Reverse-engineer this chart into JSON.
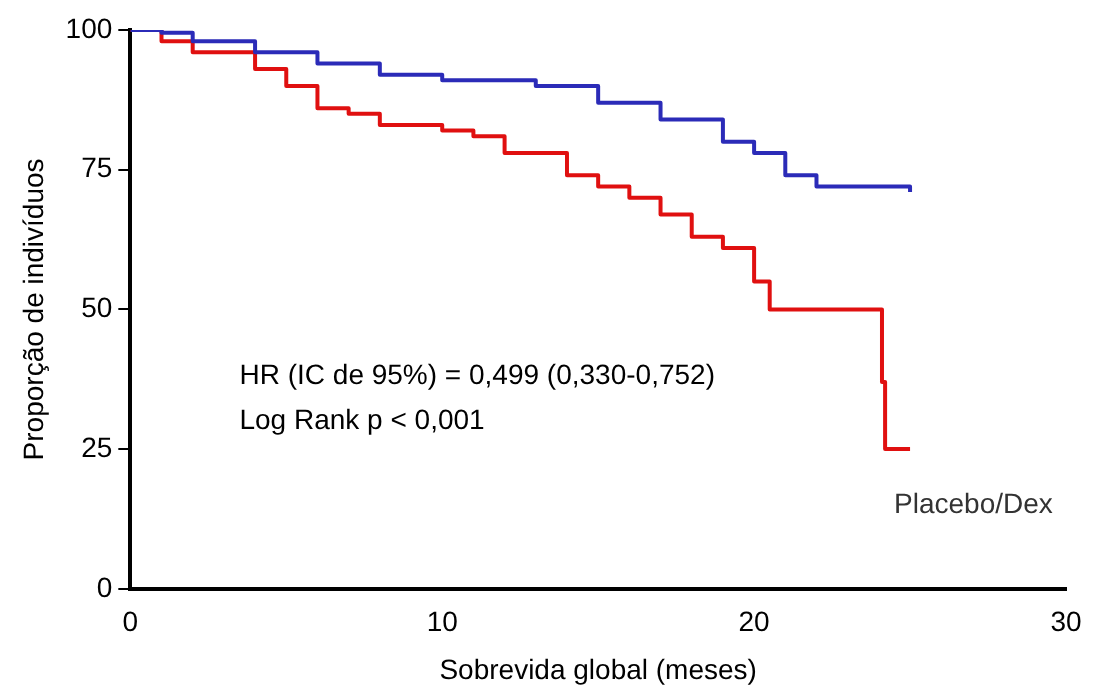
{
  "chart_data": {
    "type": "step",
    "xlabel": "Sobrevida global (meses)",
    "ylabel": "Proporção de indivíduos",
    "xlim": [
      0,
      30
    ],
    "xticks": [
      0,
      10,
      20,
      30
    ],
    "ylim": [
      0,
      100
    ],
    "yticks": [
      0,
      25,
      50,
      75,
      100
    ],
    "grid": false,
    "legend": false,
    "marker": "none",
    "series": [
      {
        "color": "#2b2bb8",
        "x": [
          0,
          1,
          2,
          4,
          6,
          8,
          10,
          13,
          15,
          17,
          19,
          20,
          21,
          22,
          25
        ],
        "values": [
          100,
          99.5,
          98,
          96,
          94,
          92,
          91,
          90,
          87,
          84,
          80,
          78,
          74,
          72,
          71
        ]
      },
      {
        "name": "Placebo/Dex",
        "color": "#e01010",
        "x": [
          0,
          1,
          2,
          4,
          5,
          6,
          7,
          8,
          10,
          11,
          12,
          14,
          15,
          16,
          17,
          18,
          19,
          20,
          20.5,
          24,
          24.1,
          24.2,
          25
        ],
        "values": [
          100,
          98,
          96,
          93,
          90,
          86,
          85,
          83,
          82,
          81,
          78,
          74,
          72,
          70,
          67,
          63,
          61,
          55,
          50,
          50,
          37,
          25,
          25
        ]
      }
    ],
    "annotations": [
      "HR (IC de 95%) = 0,499 (0,330-0,752)",
      "Log Rank p < 0,001"
    ]
  }
}
